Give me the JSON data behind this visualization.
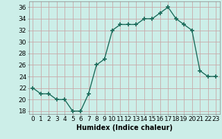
{
  "x": [
    0,
    1,
    2,
    3,
    4,
    5,
    6,
    7,
    8,
    9,
    10,
    11,
    12,
    13,
    14,
    15,
    16,
    17,
    18,
    19,
    20,
    21,
    22,
    23
  ],
  "y": [
    22,
    21,
    21,
    20,
    20,
    18,
    18,
    21,
    26,
    27,
    32,
    33,
    33,
    33,
    34,
    34,
    35,
    36,
    34,
    33,
    32,
    25,
    24,
    24
  ],
  "line_color": "#1a6b5a",
  "marker": "+",
  "marker_size": 4,
  "marker_lw": 1.2,
  "bg_color": "#cceee8",
  "grid_color": "#c8a8a8",
  "xlabel": "Humidex (Indice chaleur)",
  "ylim": [
    17.5,
    37
  ],
  "xlim": [
    -0.5,
    23.5
  ],
  "yticks": [
    18,
    20,
    22,
    24,
    26,
    28,
    30,
    32,
    34,
    36
  ],
  "xticks": [
    0,
    1,
    2,
    3,
    4,
    5,
    6,
    7,
    8,
    9,
    10,
    11,
    12,
    13,
    14,
    15,
    16,
    17,
    18,
    19,
    20,
    21,
    22,
    23
  ],
  "label_fontsize": 7,
  "tick_fontsize": 6.5,
  "line_width": 1.0
}
